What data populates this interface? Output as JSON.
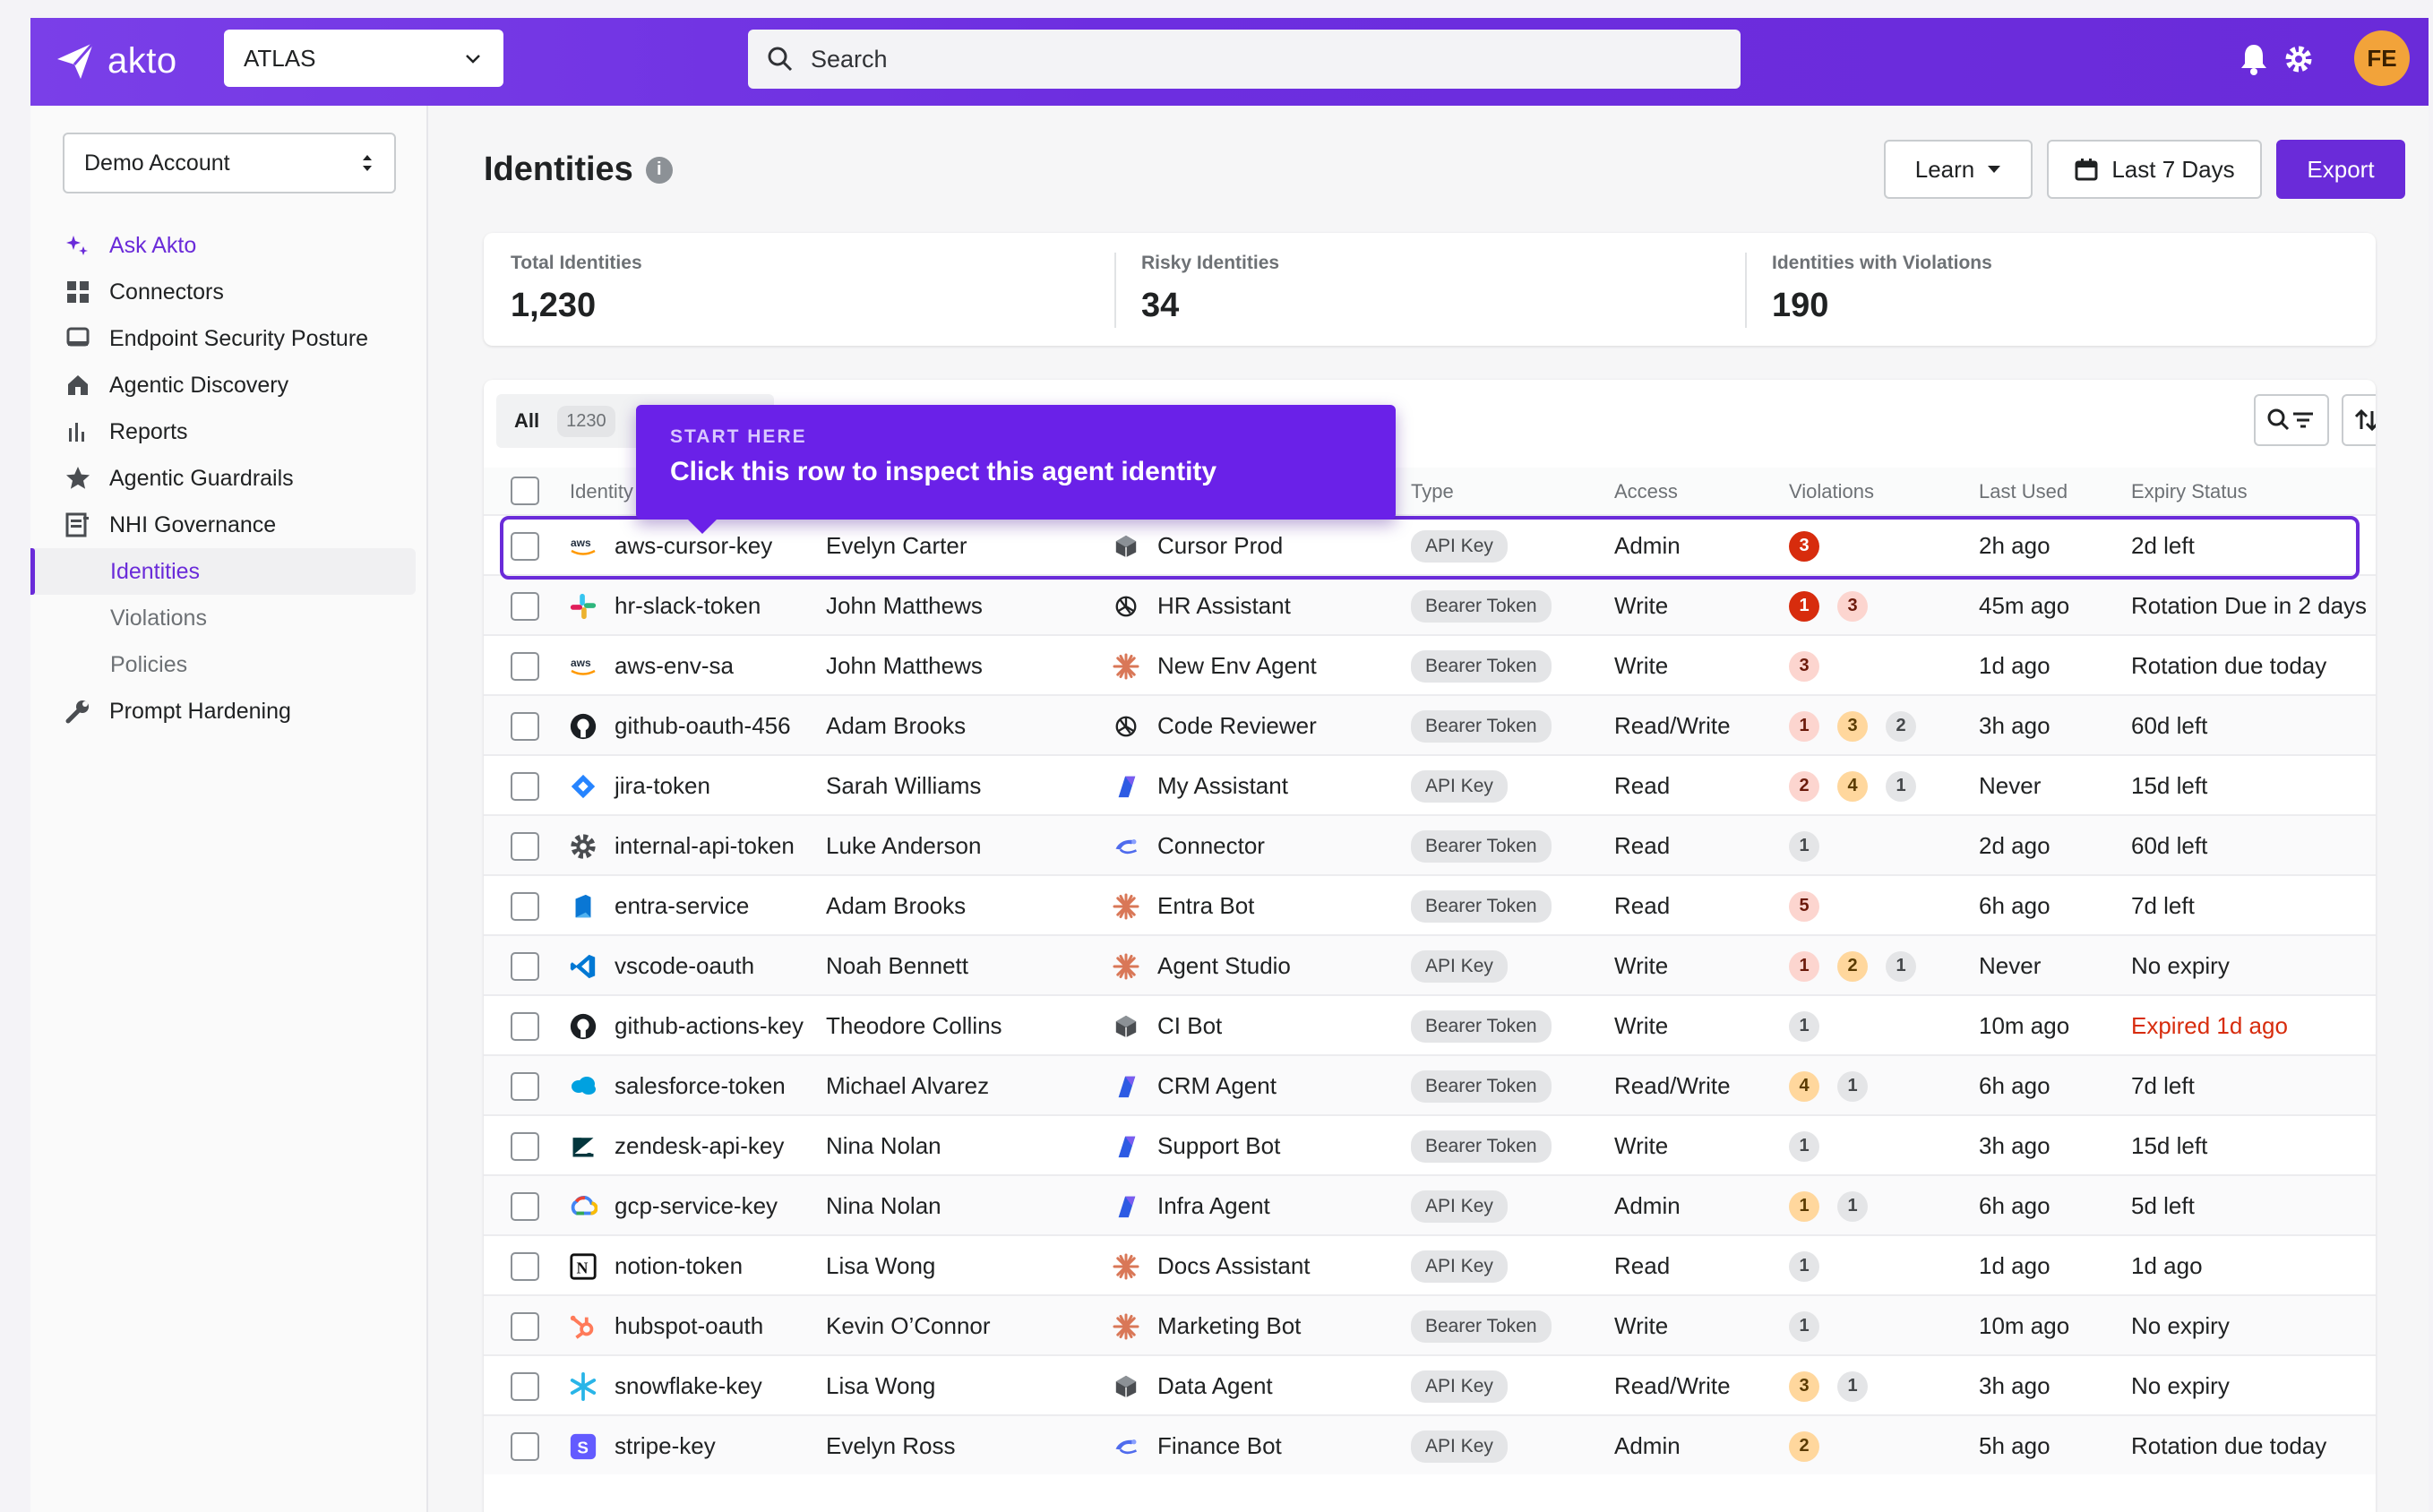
{
  "topbar": {
    "logo_text": "akto",
    "workspace": "ATLAS",
    "search_placeholder": "Search",
    "avatar_initials": "FE"
  },
  "sidebar": {
    "account": "Demo Account",
    "items": [
      {
        "label": "Ask Akto",
        "icon": "sparkle-icon"
      },
      {
        "label": "Connectors",
        "icon": "grid-icon"
      },
      {
        "label": "Endpoint Security Posture",
        "icon": "monitor-icon"
      },
      {
        "label": "Agentic Discovery",
        "icon": "house-icon"
      },
      {
        "label": "Reports",
        "icon": "bar-chart-icon"
      },
      {
        "label": "Agentic Guardrails",
        "icon": "star-icon"
      },
      {
        "label": "NHI Governance",
        "icon": "document-icon"
      }
    ],
    "sub_items": [
      "Identities",
      "Violations",
      "Policies"
    ],
    "bottom_item": {
      "label": "Prompt Hardening",
      "icon": "wrench-icon"
    }
  },
  "page": {
    "title": "Identities",
    "learn_label": "Learn",
    "date_label": "Last 7 Days",
    "export_label": "Export"
  },
  "summary": [
    {
      "label": "Total Identities",
      "value": "1,230"
    },
    {
      "label": "Risky Identities",
      "value": "34"
    },
    {
      "label": "Identities with Violations",
      "value": "190"
    }
  ],
  "table": {
    "tab_all": "All",
    "tab_count": "1230",
    "headers": {
      "identity": "Identity",
      "type": "Type",
      "access": "Access",
      "violations": "Violations",
      "last_used": "Last Used",
      "expiry": "Expiry Status"
    },
    "rows": [
      {
        "identity": "aws-cursor-key",
        "owner": "Evelyn Carter",
        "agent": "Cursor Prod",
        "type": "API Key",
        "access": "Admin",
        "last_used": "2h ago",
        "expiry": "2d left"
      },
      {
        "identity": "hr-slack-token",
        "owner": "John Matthews",
        "agent": "HR Assistant",
        "type": "Bearer Token",
        "access": "Write",
        "last_used": "45m ago",
        "expiry": "Rotation Due in 2 days"
      },
      {
        "identity": "aws-env-sa",
        "owner": "John Matthews",
        "agent": "New Env Agent",
        "type": "Bearer Token",
        "access": "Write",
        "last_used": "1d ago",
        "expiry": "Rotation due today"
      },
      {
        "identity": "github-oauth-456",
        "owner": "Adam Brooks",
        "agent": "Code Reviewer",
        "type": "Bearer Token",
        "access": "Read/Write",
        "last_used": "3h ago",
        "expiry": "60d left"
      },
      {
        "identity": "jira-token",
        "owner": "Sarah Williams",
        "agent": "My Assistant",
        "type": "API Key",
        "access": "Read",
        "last_used": "Never",
        "expiry": "15d left"
      },
      {
        "identity": "internal-api-token",
        "owner": "Luke Anderson",
        "agent": "Connector",
        "type": "Bearer Token",
        "access": "Read",
        "last_used": "2d ago",
        "expiry": "60d left"
      },
      {
        "identity": "entra-service",
        "owner": "Adam Brooks",
        "agent": "Entra Bot",
        "type": "Bearer Token",
        "access": "Read",
        "last_used": "6h ago",
        "expiry": "7d left"
      },
      {
        "identity": "vscode-oauth",
        "owner": "Noah Bennett",
        "agent": "Agent Studio",
        "type": "API Key",
        "access": "Write",
        "last_used": "Never",
        "expiry": "No expiry"
      },
      {
        "identity": "github-actions-key",
        "owner": "Theodore Collins",
        "agent": "CI Bot",
        "type": "Bearer Token",
        "access": "Write",
        "last_used": "10m ago",
        "expiry": "Expired 1d ago"
      },
      {
        "identity": "salesforce-token",
        "owner": "Michael Alvarez",
        "agent": "CRM Agent",
        "type": "Bearer Token",
        "access": "Read/Write",
        "last_used": "6h ago",
        "expiry": "7d left"
      },
      {
        "identity": "zendesk-api-key",
        "owner": "Nina Nolan",
        "agent": "Support Bot",
        "type": "Bearer Token",
        "access": "Write",
        "last_used": "3h ago",
        "expiry": "15d left"
      },
      {
        "identity": "gcp-service-key",
        "owner": "Nina Nolan",
        "agent": "Infra Agent",
        "type": "API Key",
        "access": "Admin",
        "last_used": "6h ago",
        "expiry": "5d left"
      },
      {
        "identity": "notion-token",
        "owner": "Lisa Wong",
        "agent": "Docs Assistant",
        "type": "API Key",
        "access": "Read",
        "last_used": "1d ago",
        "expiry": "1d ago"
      },
      {
        "identity": "hubspot-oauth",
        "owner": "Kevin O’Connor",
        "agent": "Marketing Bot",
        "type": "Bearer Token",
        "access": "Write",
        "last_used": "10m ago",
        "expiry": "No expiry"
      },
      {
        "identity": "snowflake-key",
        "owner": "Lisa Wong",
        "agent": "Data Agent",
        "type": "API Key",
        "access": "Read/Write",
        "last_used": "3h ago",
        "expiry": "No expiry"
      },
      {
        "identity": "stripe-key",
        "owner": "Evelyn Ross",
        "agent": "Finance Bot",
        "type": "API Key",
        "access": "Admin",
        "last_used": "5h ago",
        "expiry": "Rotation due today"
      }
    ],
    "violations": [
      [
        {
          "n": "3",
          "sev": "crit"
        }
      ],
      [
        {
          "n": "1",
          "sev": "crit"
        },
        {
          "n": "3",
          "sev": "high"
        }
      ],
      [
        {
          "n": "3",
          "sev": "high"
        }
      ],
      [
        {
          "n": "1",
          "sev": "high"
        },
        {
          "n": "3",
          "sev": "med"
        },
        {
          "n": "2",
          "sev": "low"
        }
      ],
      [
        {
          "n": "2",
          "sev": "high"
        },
        {
          "n": "4",
          "sev": "med"
        },
        {
          "n": "1",
          "sev": "low"
        }
      ],
      [
        {
          "n": "1",
          "sev": "low"
        }
      ],
      [
        {
          "n": "5",
          "sev": "high"
        }
      ],
      [
        {
          "n": "1",
          "sev": "high"
        },
        {
          "n": "2",
          "sev": "med"
        },
        {
          "n": "1",
          "sev": "low"
        }
      ],
      [
        {
          "n": "1",
          "sev": "low"
        }
      ],
      [
        {
          "n": "4",
          "sev": "med"
        },
        {
          "n": "1",
          "sev": "low"
        }
      ],
      [
        {
          "n": "1",
          "sev": "low"
        }
      ],
      [
        {
          "n": "1",
          "sev": "med"
        },
        {
          "n": "1",
          "sev": "low"
        }
      ],
      [
        {
          "n": "1",
          "sev": "low"
        }
      ],
      [
        {
          "n": "1",
          "sev": "low"
        }
      ],
      [
        {
          "n": "3",
          "sev": "med"
        },
        {
          "n": "1",
          "sev": "low"
        }
      ],
      [
        {
          "n": "2",
          "sev": "med"
        }
      ]
    ],
    "service_icons": [
      "aws-icon",
      "slack-icon",
      "aws-icon",
      "github-icon",
      "jira-icon",
      "gear-icon",
      "entra-icon",
      "vscode-icon",
      "github-icon",
      "salesforce-icon",
      "zendesk-icon",
      "gcp-icon",
      "notion-icon",
      "hubspot-icon",
      "snowflake-icon",
      "stripe-icon"
    ],
    "agent_icons": [
      "cube-icon",
      "openai-icon",
      "claude-icon",
      "openai-icon",
      "copilot-icon",
      "gemini-icon",
      "claude-icon",
      "claude-icon",
      "cube-icon",
      "copilot-icon",
      "copilot-icon",
      "copilot-icon",
      "claude-icon",
      "claude-icon",
      "cube-icon",
      "gemini-icon"
    ]
  },
  "tooltip": {
    "kicker": "START HERE",
    "text": "Click this row to inspect this agent identity"
  },
  "colors": {
    "brand": "#6a2bd9",
    "critical": "#d72c0d",
    "expired_text": "#d72c0d"
  }
}
